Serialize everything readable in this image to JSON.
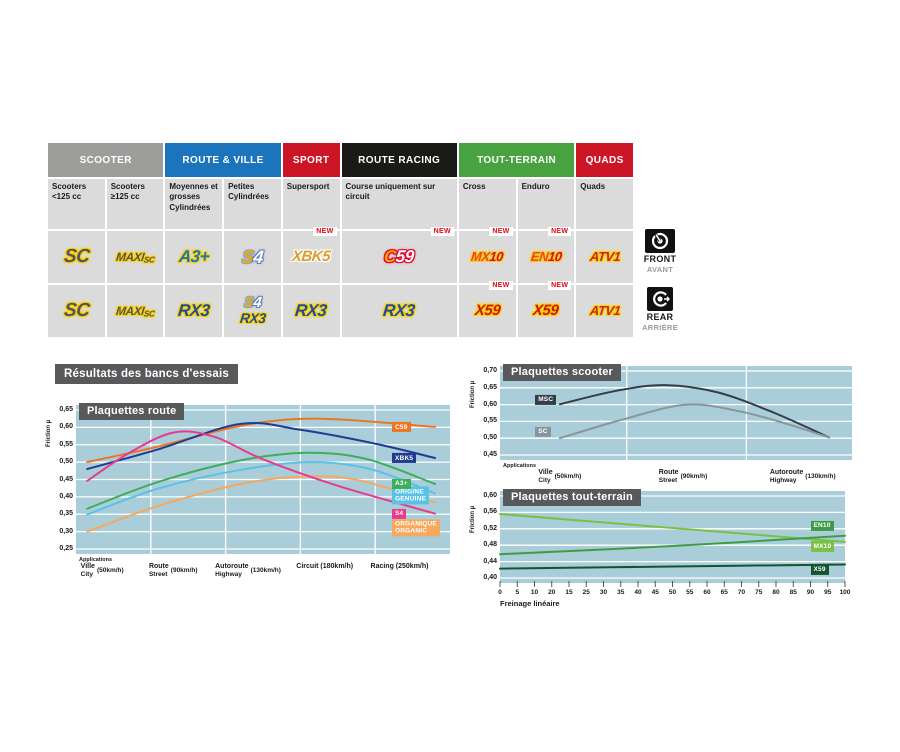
{
  "table": {
    "header_groups": [
      {
        "label": "SCOOTER",
        "color": "#9d9d9c",
        "cols": 2
      },
      {
        "label": "ROUTE & VILLE",
        "color": "#1c75bc",
        "cols": 2
      },
      {
        "label": "SPORT",
        "color": "#cc1626",
        "cols": 1
      },
      {
        "label": "ROUTE RACING",
        "color": "#1a1a18",
        "cols": 2
      },
      {
        "label": "TOUT-TERRAIN",
        "color": "#48a23f",
        "cols": 2
      },
      {
        "label": "QUADS",
        "color": "#cc1626",
        "cols": 1
      }
    ],
    "subheaders": [
      {
        "label": "Scooters <125 cc",
        "cols": 1
      },
      {
        "label": "Scooters ≥125 cc",
        "cols": 1
      },
      {
        "label": "Moyennes et grosses Cylindrées",
        "cols": 1
      },
      {
        "label": "Petites Cylindrées",
        "cols": 1
      },
      {
        "label": "Supersport",
        "cols": 1
      },
      {
        "label": "Course uniquement sur circuit",
        "cols": 2
      },
      {
        "label": "Cross",
        "cols": 1
      },
      {
        "label": "Enduro",
        "cols": 1
      },
      {
        "label": "Quads",
        "cols": 1
      }
    ],
    "new_badge_label": "NEW",
    "product_rows": [
      {
        "id": "front",
        "cells": [
          {
            "logos": [
              "SC"
            ],
            "cols": 1
          },
          {
            "logos": [
              "MAXISC"
            ],
            "cols": 1
          },
          {
            "logos": [
              "A3PLUS"
            ],
            "cols": 1
          },
          {
            "logos": [
              "S4"
            ],
            "cols": 1
          },
          {
            "logos": [
              "XBK5"
            ],
            "cols": 1,
            "new": true
          },
          {
            "logos": [
              "C59"
            ],
            "cols": 2,
            "new": true
          },
          {
            "logos": [
              "MX10"
            ],
            "cols": 1,
            "new": true
          },
          {
            "logos": [
              "EN10"
            ],
            "cols": 1,
            "new": true
          },
          {
            "logos": [
              "ATV1"
            ],
            "cols": 1
          }
        ]
      },
      {
        "id": "rear",
        "cells": [
          {
            "logos": [
              "SC"
            ],
            "cols": 1
          },
          {
            "logos": [
              "MAXISC"
            ],
            "cols": 1
          },
          {
            "logos": [
              "RX3"
            ],
            "cols": 1
          },
          {
            "logos": [
              "S4",
              "RX3"
            ],
            "cols": 1
          },
          {
            "logos": [
              "RX3"
            ],
            "cols": 1
          },
          {
            "logos": [
              "RX3"
            ],
            "cols": 2
          },
          {
            "logos": [
              "X59"
            ],
            "cols": 1,
            "new": true
          },
          {
            "logos": [
              "X59"
            ],
            "cols": 1,
            "new": true
          },
          {
            "logos": [
              "ATV1"
            ],
            "cols": 1
          }
        ]
      }
    ],
    "logos": {
      "SC": {
        "size": 19,
        "parts": [
          {
            "t": "SC",
            "c": "#53565a",
            "o": "#ffd200"
          }
        ]
      },
      "MAXISC": {
        "size": 12,
        "parts": [
          {
            "t": "MAXI",
            "c": "#53565a",
            "o": "#ffd200"
          },
          {
            "t": "SC",
            "c": "#53565a",
            "o": "#ffd200",
            "sub": true
          }
        ]
      },
      "A3PLUS": {
        "size": 17,
        "parts": [
          {
            "t": "A3+",
            "c": "#1c75bc",
            "o": "#ffd200"
          }
        ]
      },
      "S4": {
        "size": 18,
        "parts": [
          {
            "t": "S",
            "c": "#f2a900",
            "o": "#8ea8c8"
          },
          {
            "t": "4",
            "c": "#ffffff",
            "o": "#5b7fb4"
          }
        ]
      },
      "XBK5": {
        "size": 15,
        "parts": [
          {
            "t": "XBK5",
            "c": "#db9e2d",
            "o": "#ffffff"
          }
        ]
      },
      "C59": {
        "size": 17,
        "parts": [
          {
            "t": "C",
            "c": "#f2a900",
            "o": "#e4002b"
          },
          {
            "t": "59",
            "c": "#ffffff",
            "o": "#e4002b"
          }
        ]
      },
      "MX10": {
        "size": 13,
        "parts": [
          {
            "t": "MX",
            "c": "#e84e0f",
            "o": "#ffc72c"
          },
          {
            "t": "10",
            "c": "#d01317",
            "o": "#ffc72c"
          }
        ]
      },
      "EN10": {
        "size": 13,
        "parts": [
          {
            "t": "EN",
            "c": "#e84e0f",
            "o": "#ffc72c"
          },
          {
            "t": "10",
            "c": "#d01317",
            "o": "#ffc72c"
          }
        ]
      },
      "ATV1": {
        "size": 13,
        "parts": [
          {
            "t": "ATV1",
            "c": "#c9252c",
            "o": "#ffd200"
          }
        ]
      },
      "RX3": {
        "size": 17,
        "parts": [
          {
            "t": "RX3",
            "c": "#1d4f9e",
            "o": "#ffd200"
          }
        ]
      },
      "X59": {
        "size": 15,
        "parts": [
          {
            "t": "X59",
            "c": "#d01317",
            "o": "#ffd200"
          }
        ]
      }
    },
    "position_legend": {
      "front": {
        "label": "FRONT",
        "sub": "AVANT"
      },
      "rear": {
        "label": "REAR",
        "sub": "ARRIÈRE"
      }
    }
  },
  "section_title": "Résultats des bancs d'essais",
  "chart_data": [
    {
      "id": "route",
      "type": "line",
      "title": "Plaquettes route",
      "ylabel": "Friction µ",
      "ylim": [
        0.25,
        0.65
      ],
      "ytick_step": 0.05,
      "plot_bg": "#a9cdd9",
      "x_axis": {
        "applications_label": "Applications",
        "categories": [
          {
            "top": "Ville",
            "bottom": "City",
            "speed": "(50km/h)",
            "x": 0.07
          },
          {
            "top": "Route",
            "bottom": "Street",
            "speed": "(90km/h)",
            "x": 0.26
          },
          {
            "top": "Autoroute",
            "bottom": "Highway",
            "speed": "(130km/h)",
            "x": 0.46
          },
          {
            "top": "",
            "bottom": "Circuit",
            "speed": "(180km/h)",
            "x": 0.665
          },
          {
            "top": "",
            "bottom": "Racing",
            "speed": "(250km/h)",
            "x": 0.865
          }
        ],
        "gridline_x": [
          0.2,
          0.4,
          0.6,
          0.8
        ]
      },
      "series": [
        {
          "name": "ORGANIQUE",
          "color": "#f6a95c",
          "label_lines": [
            "ORGANIQUE",
            "ORGANIC"
          ],
          "label_anchor": [
            0.845,
            0.311
          ],
          "points": [
            [
              0.03,
              0.3
            ],
            [
              0.22,
              0.374
            ],
            [
              0.44,
              0.437
            ],
            [
              0.6,
              0.458
            ],
            [
              0.75,
              0.449
            ],
            [
              0.96,
              0.384
            ]
          ]
        },
        {
          "name": "ORIGINE",
          "color": "#5bc2e7",
          "label_lines": [
            "ORIGINE",
            "GENUINE"
          ],
          "label_anchor": [
            0.845,
            0.404
          ],
          "points": [
            [
              0.03,
              0.349
            ],
            [
              0.22,
              0.424
            ],
            [
              0.44,
              0.478
            ],
            [
              0.63,
              0.5
            ],
            [
              0.79,
              0.479
            ],
            [
              0.96,
              0.41
            ]
          ]
        },
        {
          "name": "A3+",
          "color": "#3fae5a",
          "label_lines": [
            "A3+"
          ],
          "label_anchor": [
            0.845,
            0.438
          ],
          "points": [
            [
              0.03,
              0.366
            ],
            [
              0.22,
              0.443
            ],
            [
              0.44,
              0.505
            ],
            [
              0.62,
              0.527
            ],
            [
              0.78,
              0.508
            ],
            [
              0.96,
              0.437
            ]
          ]
        },
        {
          "name": "C59",
          "color": "#ee7623",
          "label_lines": [
            "C59"
          ],
          "label_anchor": [
            0.845,
            0.601
          ],
          "points": [
            [
              0.03,
              0.5
            ],
            [
              0.22,
              0.545
            ],
            [
              0.42,
              0.6
            ],
            [
              0.57,
              0.623
            ],
            [
              0.72,
              0.622
            ],
            [
              0.96,
              0.601
            ]
          ]
        },
        {
          "name": "XBK5",
          "color": "#1f3c90",
          "label_lines": [
            "XBK5"
          ],
          "label_anchor": [
            0.845,
            0.511
          ],
          "points": [
            [
              0.03,
              0.48
            ],
            [
              0.22,
              0.537
            ],
            [
              0.44,
              0.61
            ],
            [
              0.6,
              0.593
            ],
            [
              0.8,
              0.553
            ],
            [
              0.96,
              0.512
            ]
          ]
        },
        {
          "name": "S4",
          "color": "#e93a8e",
          "label_lines": [
            "S4"
          ],
          "label_anchor": [
            0.845,
            0.352
          ],
          "points": [
            [
              0.03,
              0.446
            ],
            [
              0.14,
              0.525
            ],
            [
              0.26,
              0.585
            ],
            [
              0.37,
              0.573
            ],
            [
              0.5,
              0.508
            ],
            [
              0.7,
              0.432
            ],
            [
              0.96,
              0.352
            ]
          ]
        }
      ]
    },
    {
      "id": "scooter",
      "type": "line",
      "title": "Plaquettes scooter",
      "ylabel": "Friction µ",
      "ylim": [
        0.45,
        0.7
      ],
      "ytick_step": 0.05,
      "plot_bg": "#a9cdd9",
      "x_axis": {
        "applications_label": "Applications",
        "categories": [
          {
            "top": "Ville",
            "bottom": "City",
            "speed": "(50km/h)",
            "x": 0.17
          },
          {
            "top": "Route",
            "bottom": "Street",
            "speed": "(90km/h)",
            "x": 0.52
          },
          {
            "top": "Autoroute",
            "bottom": "Highway",
            "speed": "(130km/h)",
            "x": 0.86
          }
        ],
        "gridline_x": [
          0.36,
          0.7
        ]
      },
      "series": [
        {
          "name": "MSC",
          "color": "#333e47",
          "label_lines": [
            "MSC"
          ],
          "label_anchor": [
            0.1,
            0.614
          ],
          "points": [
            [
              0.17,
              0.601
            ],
            [
              0.33,
              0.641
            ],
            [
              0.47,
              0.658
            ],
            [
              0.62,
              0.636
            ],
            [
              0.78,
              0.575
            ],
            [
              0.935,
              0.502
            ]
          ]
        },
        {
          "name": "SC",
          "color": "#87969c",
          "label_lines": [
            "SC"
          ],
          "label_anchor": [
            0.1,
            0.519
          ],
          "points": [
            [
              0.17,
              0.5
            ],
            [
              0.35,
              0.556
            ],
            [
              0.53,
              0.6
            ],
            [
              0.68,
              0.58
            ],
            [
              0.82,
              0.541
            ],
            [
              0.935,
              0.502
            ]
          ]
        }
      ]
    },
    {
      "id": "toutterrain",
      "type": "line",
      "title": "Plaquettes tout-terrain",
      "ylabel": "Friction µ",
      "ylim": [
        0.4,
        0.6
      ],
      "ytick_step": 0.04,
      "plot_bg": "#a9cdd9",
      "x_axis": {
        "numeric_ticks": [
          "0",
          "5",
          "10",
          "20",
          "15",
          "25",
          "30",
          "35",
          "40",
          "45",
          "50",
          "55",
          "60",
          "65",
          "70",
          "75",
          "80",
          "85",
          "90",
          "95",
          "100"
        ],
        "xlabel": "Freinage linéaire"
      },
      "series": [
        {
          "name": "MX10",
          "color": "#7ac143",
          "label_lines": [
            "MX10"
          ],
          "label_anchor": [
            0.9,
            0.477
          ],
          "points": [
            [
              0.0,
              0.556
            ],
            [
              0.5,
              0.522
            ],
            [
              1.0,
              0.488
            ]
          ]
        },
        {
          "name": "EN10",
          "color": "#3f9c46",
          "label_lines": [
            "EN10"
          ],
          "label_anchor": [
            0.9,
            0.527
          ],
          "points": [
            [
              0.0,
              0.458
            ],
            [
              0.5,
              0.478
            ],
            [
              1.0,
              0.503
            ]
          ]
        },
        {
          "name": "X59",
          "color": "#14532d",
          "label_lines": [
            "X59"
          ],
          "label_anchor": [
            0.9,
            0.42
          ],
          "points": [
            [
              0.0,
              0.423
            ],
            [
              0.5,
              0.428
            ],
            [
              1.0,
              0.433
            ]
          ]
        }
      ]
    }
  ]
}
